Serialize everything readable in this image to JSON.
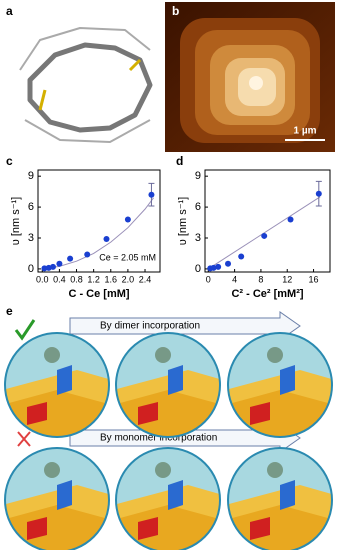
{
  "panel_labels": [
    "a",
    "b",
    "c",
    "d",
    "e"
  ],
  "scale_bar": "1 µm",
  "chart_data": [
    {
      "type": "scatter",
      "ylabel": "υ [nm s⁻¹]",
      "xlabel": "C - Ce [mM]",
      "annotation": "Ce = 2.05 mM",
      "x": [
        0.05,
        0.15,
        0.25,
        0.4,
        0.65,
        1.05,
        1.5,
        2.0,
        2.55
      ],
      "values": [
        0.05,
        0.1,
        0.2,
        0.5,
        1.0,
        1.4,
        2.9,
        4.8,
        7.2
      ],
      "errors": [
        null,
        null,
        null,
        null,
        null,
        null,
        null,
        null,
        1.1
      ],
      "color": "#1a3fd0",
      "fit": {
        "x": [
          0,
          0.4,
          0.8,
          1.2,
          1.6,
          2.0,
          2.4,
          2.6
        ],
        "values": [
          0,
          0.25,
          0.75,
          1.5,
          2.6,
          4.0,
          5.8,
          6.9
        ]
      },
      "xlim": [
        -0.1,
        2.75
      ],
      "ylim": [
        -0.3,
        9.6
      ],
      "xticks": [
        {
          "value": 0,
          "label": "0.0"
        },
        {
          "value": 0.4,
          "label": "0.4"
        },
        {
          "value": 0.8,
          "label": "0.8"
        },
        {
          "value": 1.2,
          "label": "1.2"
        },
        {
          "value": 1.6,
          "label": "1.6"
        },
        {
          "value": 2.0,
          "label": "2.0"
        },
        {
          "value": 2.4,
          "label": "2.4"
        }
      ],
      "yticks": [
        0,
        3,
        6,
        9
      ]
    },
    {
      "type": "scatter",
      "ylabel": "υ [nm s⁻¹]",
      "xlabel": "C² - Ce² [mM²]",
      "x": [
        0.3,
        0.8,
        1.5,
        3,
        5,
        8.5,
        12.5,
        16.8
      ],
      "values": [
        0.05,
        0.1,
        0.2,
        0.5,
        1.2,
        3.2,
        4.8,
        7.3
      ],
      "errors": [
        null,
        null,
        null,
        null,
        null,
        null,
        null,
        1.2
      ],
      "color": "#1a3fd0",
      "fit": {
        "x": [
          0,
          17
        ],
        "values": [
          0,
          7.0
        ]
      },
      "xlim": [
        -0.5,
        18.5
      ],
      "ylim": [
        -0.3,
        9.6
      ],
      "xticks": [
        0,
        4,
        8,
        12,
        16
      ],
      "yticks": [
        0,
        3,
        6,
        9
      ]
    }
  ],
  "panel_e": {
    "rows": [
      "By dimer incorporation",
      "By monomer incorporation"
    ]
  }
}
